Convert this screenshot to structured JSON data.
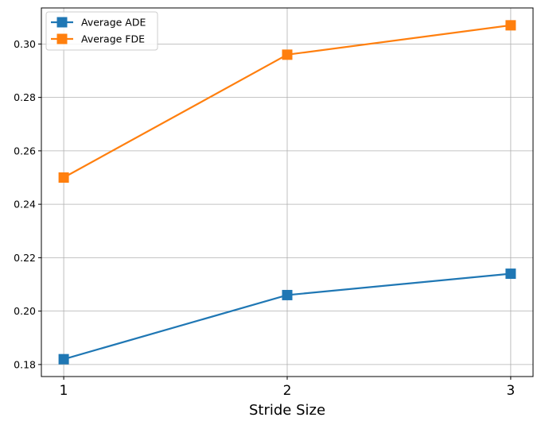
{
  "chart_data": {
    "type": "line",
    "title": "",
    "xlabel": "Stride Size",
    "ylabel": "",
    "x": [
      1,
      2,
      3
    ],
    "xticks": [
      "1",
      "2",
      "3"
    ],
    "xlim": [
      0.9,
      3.1
    ],
    "ylim": [
      0.1755,
      0.3135
    ],
    "yticks": [
      0.18,
      0.2,
      0.22,
      0.24,
      0.26,
      0.28,
      0.3
    ],
    "yticklabels": [
      "0.18",
      "0.20",
      "0.22",
      "0.24",
      "0.26",
      "0.28",
      "0.30"
    ],
    "grid": true,
    "legend_position": "upper-left",
    "series": [
      {
        "name": "Average ADE",
        "values": [
          0.182,
          0.206,
          0.214
        ],
        "color": "#1f77b4",
        "marker": "square"
      },
      {
        "name": "Average FDE",
        "values": [
          0.25,
          0.296,
          0.307
        ],
        "color": "#ff7f0e",
        "marker": "square"
      }
    ]
  }
}
